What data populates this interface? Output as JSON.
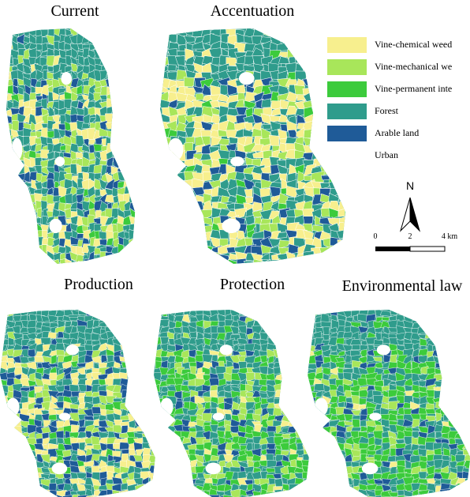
{
  "panels": [
    {
      "title": "Current"
    },
    {
      "title": "Accentuation"
    },
    {
      "title": "Production"
    },
    {
      "title": "Protection"
    },
    {
      "title": "Environmental law"
    }
  ],
  "legend": {
    "items": [
      {
        "label": "Vine-chemical weed",
        "color": "#f7ef8e"
      },
      {
        "label": "Vine-mechanical we",
        "color": "#a8e65a"
      },
      {
        "label": "Vine-permanent inte",
        "color": "#3ccb3c"
      },
      {
        "label": "Forest",
        "color": "#2f9c8c"
      },
      {
        "label": "Arable land",
        "color": "#1f5b98"
      },
      {
        "label": "Urban",
        "color": "#ffffff"
      }
    ]
  },
  "north_arrow": {
    "label": "N"
  },
  "scale_bar": {
    "labels": [
      "0",
      "2",
      "4 km"
    ]
  }
}
